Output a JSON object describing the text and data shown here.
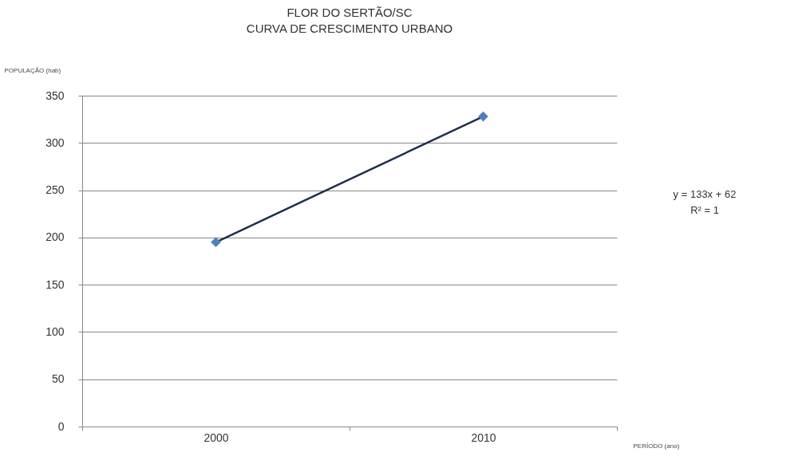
{
  "chart_data": {
    "type": "line",
    "title": [
      "FLOR DO SERTÃO/SC",
      "CURVA DE CRESCIMENTO URBANO"
    ],
    "xlabel": "PERÍODO (ano)",
    "ylabel": "POPULAÇÃO (hab)",
    "categories": [
      "2000",
      "2010"
    ],
    "series": [
      {
        "type": "scatter",
        "marker": "diamond",
        "color": "#4f81bd",
        "values": [
          195,
          328
        ]
      },
      {
        "color": "#1f2f4a",
        "values": [
          195,
          328
        ]
      }
    ],
    "ylim": [
      0,
      350
    ],
    "yticks": [
      0,
      50,
      100,
      150,
      200,
      250,
      300,
      350
    ],
    "grid": "y",
    "annotations": [
      "y = 133x + 62",
      "R² = 1"
    ]
  }
}
